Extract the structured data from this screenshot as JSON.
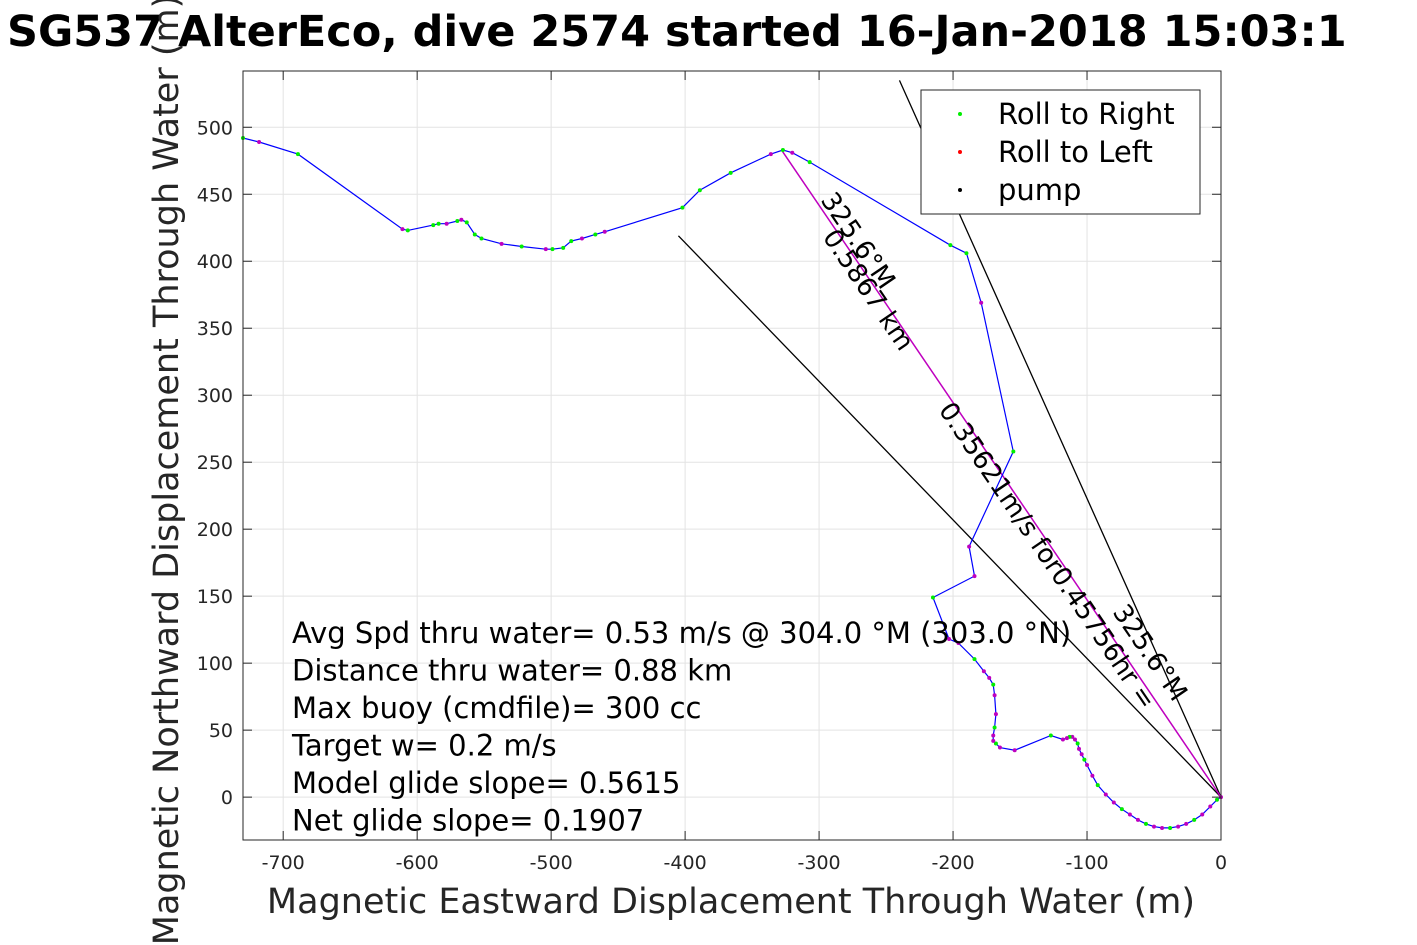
{
  "chart_data": {
    "type": "line",
    "title": "SG537 AlterEco, dive 2574 started 16-Jan-2018 15:03:1",
    "xlabel": "Magnetic Eastward Displacement Through Water (m)",
    "ylabel": "Magnetic Northward Displacement Through Water (m)",
    "xlim": [
      -730,
      0
    ],
    "ylim": [
      -32,
      542
    ],
    "xticks": [
      -700,
      -600,
      -500,
      -400,
      -300,
      -200,
      -100,
      0
    ],
    "yticks": [
      0,
      50,
      100,
      150,
      200,
      250,
      300,
      350,
      400,
      450,
      500
    ],
    "grid": true,
    "legend_placement": "top-right",
    "legend": [
      {
        "label": "Roll to Right",
        "color": "#00ee00"
      },
      {
        "label": "Roll to Left",
        "color": "#ff0000"
      },
      {
        "label": "pump",
        "color": "#000000"
      }
    ],
    "colors": {
      "track": "#0000ff",
      "course": "#bf00bf",
      "dots": "#bf00bf",
      "guide": "#000000"
    },
    "track": {
      "x": [
        0,
        -3,
        -8,
        -14,
        -20,
        -26,
        -32,
        -38,
        -44,
        -50,
        -56,
        -62,
        -68,
        -74,
        -80,
        -86,
        -92,
        -96,
        -100,
        -102,
        -104,
        -106,
        -107,
        -109,
        -111,
        -113,
        -115,
        -118,
        -127,
        -154,
        -165,
        -168,
        -170,
        -170,
        -169,
        -168,
        -169,
        -170,
        -173,
        -177,
        -184,
        -196,
        -203,
        -215,
        -184,
        -188,
        -155,
        -179,
        -190,
        -202,
        -307,
        -320,
        -327,
        -336,
        -366,
        -389,
        -402,
        -460,
        -467,
        -477,
        -485,
        -491,
        -499,
        -504,
        -522,
        -537,
        -552,
        -557,
        -563,
        -567,
        -570,
        -578,
        -584,
        -588,
        -607,
        -611,
        -689,
        -718,
        -730
      ],
      "y": [
        0,
        -2,
        -7,
        -13,
        -17,
        -20,
        -22,
        -23,
        -23,
        -22,
        -20,
        -17,
        -13,
        -9,
        -4,
        2,
        9,
        16,
        24,
        28,
        32,
        36,
        40,
        43,
        45,
        45,
        44,
        43,
        46,
        35,
        37,
        40,
        42,
        46,
        52,
        62,
        76,
        84,
        89,
        94,
        103,
        115,
        118,
        149,
        165,
        187,
        258,
        369,
        406,
        412,
        474,
        481,
        483,
        480,
        466,
        453,
        440,
        422,
        420,
        417,
        415,
        410,
        409,
        409,
        411,
        413,
        417,
        420,
        429,
        431,
        430,
        428,
        428,
        427,
        423,
        424,
        480,
        489,
        492
      ]
    },
    "course_line": {
      "x": [
        0,
        -328
      ],
      "y": [
        0,
        483
      ]
    },
    "guide_lines": [
      {
        "x": [
          0,
          -405
        ],
        "y": [
          0,
          419
        ]
      },
      {
        "x": [
          0,
          -240
        ],
        "y": [
          0,
          535
        ]
      }
    ],
    "annotations": [
      "Avg Spd thru water=  0.53 m/s @ 304.0 °M (303.0 °N)",
      "Distance thru water=  0.88 km",
      "Max buoy (cmdfile)= 300 cc",
      "Target w= 0.2 m/s",
      "Model glide slope= 0.5615",
      "Net glide slope= 0.1907"
    ],
    "rotated_labels": {
      "course_bearing": "325.6°M",
      "course_text": "0.5867 km",
      "mid_text": "0.35621m/s for0.45756hr =",
      "outer_text": "325.6°M"
    }
  }
}
